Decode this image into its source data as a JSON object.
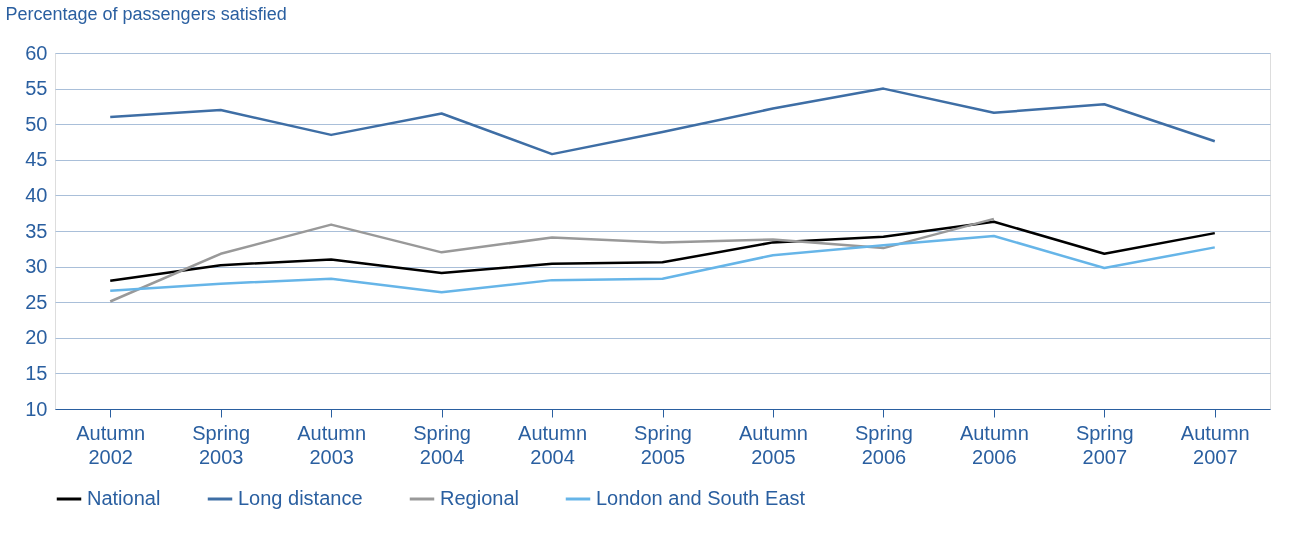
{
  "chart_data": {
    "type": "line",
    "ylabel": "Percentage of passengers satisfied",
    "categories": [
      "Autumn 2002",
      "Spring 2003",
      "Autumn 2003",
      "Spring 2004",
      "Autumn 2004",
      "Spring 2005",
      "Autumn 2005",
      "Spring 2006",
      "Autumn 2006",
      "Spring 2007",
      "Autumn 2007"
    ],
    "series": [
      {
        "name": "National",
        "color": "#000000",
        "values": [
          28,
          30.2,
          31,
          29.1,
          30.4,
          30.6,
          33.4,
          34.2,
          36.3,
          31.8,
          34.7
        ]
      },
      {
        "name": "Long distance",
        "color": "#3e6ea5",
        "values": [
          51,
          52,
          48.5,
          51.5,
          45.8,
          48.9,
          52.2,
          55,
          51.6,
          52.8,
          47.6
        ]
      },
      {
        "name": "Regional",
        "color": "#999999",
        "values": [
          25.1,
          31.8,
          35.9,
          32,
          34.1,
          33.4,
          33.8,
          32.6,
          36.7,
          null,
          null
        ]
      },
      {
        "name": "London and South East",
        "color": "#66b5e8",
        "values": [
          26.6,
          27.6,
          28.3,
          26.4,
          28.1,
          28.3,
          31.6,
          33,
          34.3,
          29.8,
          32.7
        ]
      }
    ],
    "ylim": [
      10,
      60
    ],
    "yticks": [
      10,
      15,
      20,
      25,
      30,
      35,
      40,
      45,
      50,
      55,
      60
    ],
    "grid": "y",
    "legend": "bottom",
    "marker": "none",
    "line_style": "solid"
  }
}
